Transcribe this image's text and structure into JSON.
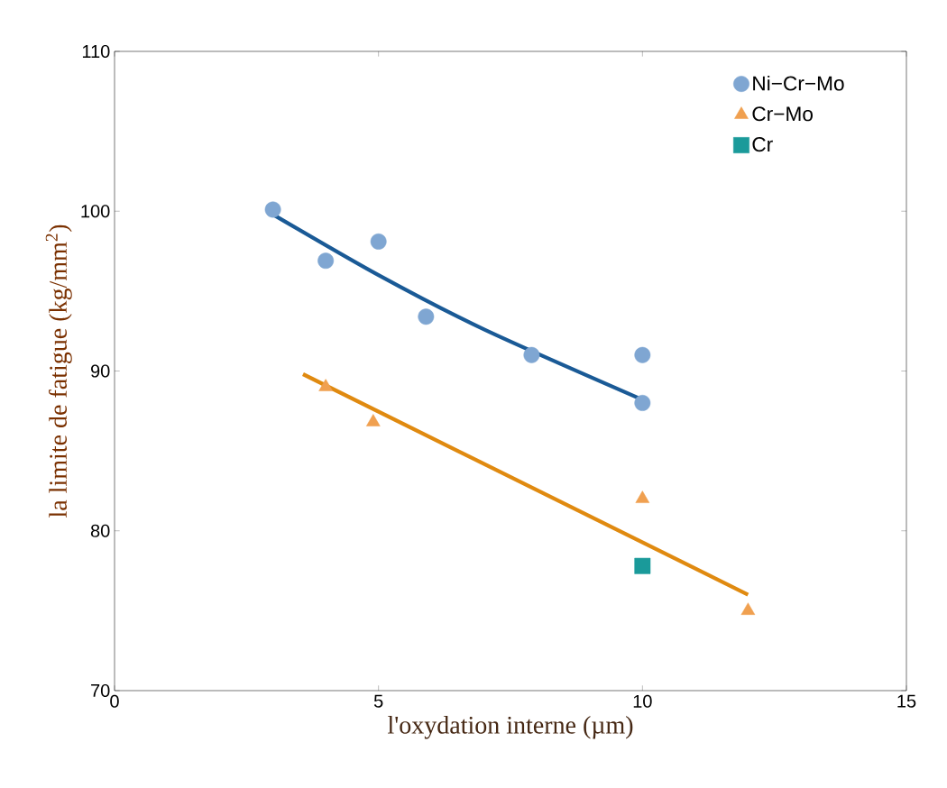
{
  "chart_data": {
    "type": "scatter",
    "xlabel": "l'oxydation interne (µm)",
    "ylabel": "la limite de fatigue (kg/mm$^{2}$)",
    "xlim": [
      0,
      15
    ],
    "xticks": [
      0,
      5,
      10,
      15
    ],
    "ylim": [
      70,
      110
    ],
    "yticks": [
      70,
      80,
      90,
      100,
      110
    ],
    "grid": false,
    "legend": "top right",
    "series": [
      {
        "name": "Ni−Cr−Mo",
        "marker": "circle",
        "color": "#7fa6d2",
        "x": [
          3,
          4,
          5,
          5.9,
          7.9,
          10,
          10
        ],
        "values": [
          100.1,
          96.9,
          98.1,
          93.4,
          91,
          91,
          88
        ]
      },
      {
        "name": "Cr−Mo",
        "marker": "triangle",
        "color": "#f0a050",
        "x": [
          4,
          4.9,
          10,
          12
        ],
        "values": [
          89,
          86.8,
          82,
          75
        ]
      },
      {
        "name": "Cr",
        "marker": "square",
        "color": "#1a9a9a",
        "x": [
          10
        ],
        "values": [
          77.8
        ]
      },
      {
        "type": "line",
        "color": "#1a5a96",
        "x": [
          3,
          5,
          7,
          10
        ],
        "values": [
          99.8,
          96,
          92.6,
          88.2
        ]
      },
      {
        "type": "line",
        "color": "#e08a10",
        "x": [
          3.57,
          12
        ],
        "values": [
          89.8,
          76
        ]
      }
    ]
  }
}
